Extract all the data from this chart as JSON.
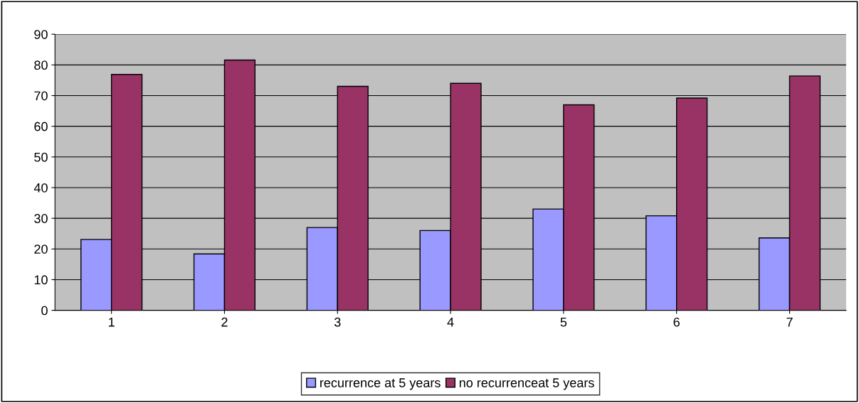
{
  "chart_data": {
    "type": "bar",
    "categories": [
      "1",
      "2",
      "3",
      "4",
      "5",
      "6",
      "7"
    ],
    "series": [
      {
        "name": "recurrence at 5 years",
        "color": "#9999ff",
        "values": [
          23.1,
          18.4,
          27,
          26,
          33,
          30.8,
          23.6
        ]
      },
      {
        "name": "no recurrenceat 5 years",
        "color": "#993366",
        "values": [
          76.9,
          81.6,
          73,
          74,
          67,
          69.2,
          76.4
        ]
      }
    ],
    "ylim": [
      0,
      90
    ],
    "yticks": [
      0,
      10,
      20,
      30,
      40,
      50,
      60,
      70,
      80,
      90
    ],
    "grid": "y",
    "legend": "bottom"
  }
}
